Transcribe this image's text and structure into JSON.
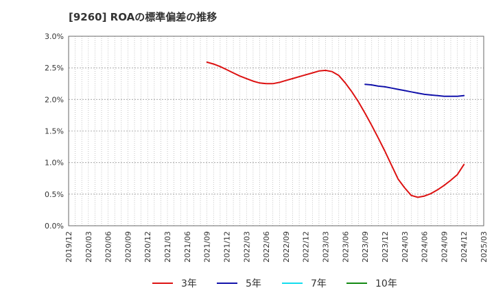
{
  "chart_data": {
    "type": "line",
    "title": "[9260]  ROAの標準偏差の推移",
    "xlabel": "",
    "ylabel": "",
    "ylim": [
      0,
      3.0
    ],
    "yticks": [
      "0.0%",
      "0.5%",
      "1.0%",
      "1.5%",
      "2.0%",
      "2.5%",
      "3.0%"
    ],
    "x_start": "2019/12",
    "x_end": "2025/03",
    "xticks": [
      "2019/12",
      "2020/03",
      "2020/06",
      "2020/09",
      "2020/12",
      "2021/03",
      "2021/06",
      "2021/09",
      "2021/12",
      "2022/03",
      "2022/06",
      "2022/09",
      "2022/12",
      "2023/03",
      "2023/06",
      "2023/09",
      "2023/12",
      "2024/03",
      "2024/06",
      "2024/09",
      "2024/12",
      "2025/03"
    ],
    "grid": true,
    "legend_position": "bottom",
    "series": [
      {
        "name": "3年",
        "color": "#dd1111",
        "x": [
          "2021/09",
          "2021/10",
          "2021/11",
          "2021/12",
          "2022/01",
          "2022/02",
          "2022/03",
          "2022/04",
          "2022/05",
          "2022/06",
          "2022/07",
          "2022/08",
          "2022/09",
          "2022/10",
          "2022/11",
          "2022/12",
          "2023/01",
          "2023/02",
          "2023/03",
          "2023/04",
          "2023/05",
          "2023/06",
          "2023/07",
          "2023/08",
          "2023/09",
          "2023/10",
          "2023/11",
          "2023/12",
          "2024/01",
          "2024/02",
          "2024/03",
          "2024/04",
          "2024/05",
          "2024/06",
          "2024/07",
          "2024/08",
          "2024/09",
          "2024/10",
          "2024/11",
          "2024/12"
        ],
        "values": [
          2.59,
          2.56,
          2.52,
          2.47,
          2.42,
          2.37,
          2.33,
          2.29,
          2.26,
          2.25,
          2.25,
          2.27,
          2.3,
          2.33,
          2.36,
          2.39,
          2.42,
          2.45,
          2.46,
          2.44,
          2.38,
          2.26,
          2.12,
          1.96,
          1.78,
          1.59,
          1.39,
          1.18,
          0.96,
          0.74,
          0.6,
          0.48,
          0.45,
          0.47,
          0.51,
          0.57,
          0.64,
          0.72,
          0.81,
          0.97
        ]
      },
      {
        "name": "5年",
        "color": "#1111aa",
        "x": [
          "2023/09",
          "2023/10",
          "2023/11",
          "2023/12",
          "2024/01",
          "2024/02",
          "2024/03",
          "2024/04",
          "2024/05",
          "2024/06",
          "2024/07",
          "2024/08",
          "2024/09",
          "2024/10",
          "2024/11",
          "2024/12"
        ],
        "values": [
          2.24,
          2.23,
          2.21,
          2.2,
          2.18,
          2.16,
          2.14,
          2.12,
          2.1,
          2.08,
          2.07,
          2.06,
          2.05,
          2.05,
          2.05,
          2.06
        ]
      },
      {
        "name": "7年",
        "color": "#11ddee",
        "x": [],
        "values": []
      },
      {
        "name": "10年",
        "color": "#118811",
        "x": [],
        "values": []
      }
    ]
  }
}
